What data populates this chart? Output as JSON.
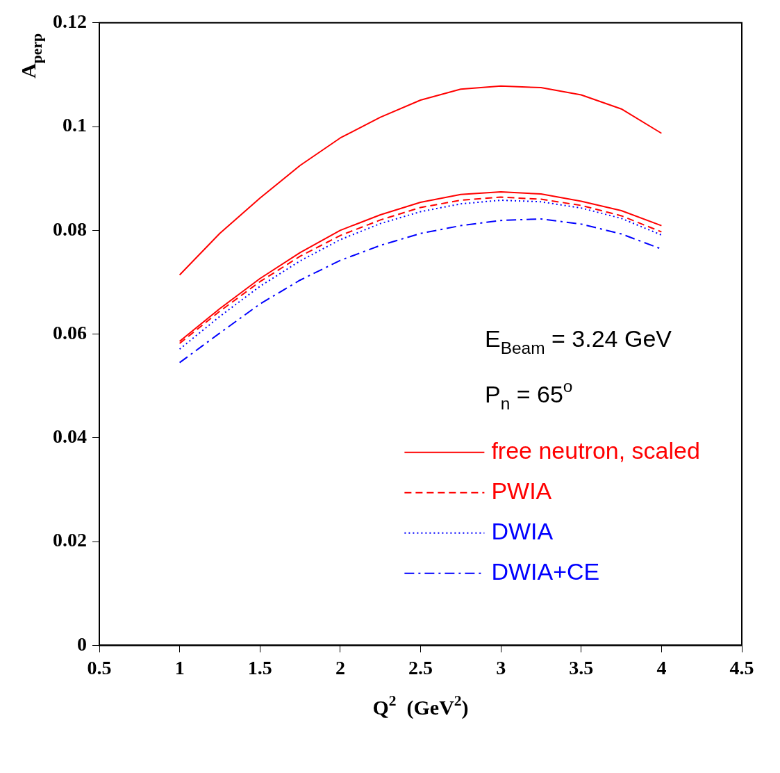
{
  "chart_data": {
    "type": "line",
    "xlabel": "Q$^{2}$  (GeV$^{2}$)",
    "ylabel": "A$_{perp}$",
    "annotations": [
      "E$_{Beam}$ = 3.24 GeV",
      "P$_{n}$ = 65$^{o}$"
    ],
    "x": [
      1,
      1.25,
      1.5,
      1.75,
      2,
      2.25,
      2.5,
      2.75,
      3,
      3.25,
      3.5,
      3.75,
      4
    ],
    "xlim": [
      0.5,
      4.5
    ],
    "xticks": [
      0.5,
      1,
      1.5,
      2,
      2.5,
      3,
      3.5,
      4,
      4.5
    ],
    "ylim": [
      0,
      0.12
    ],
    "yticks": [
      0,
      0.02,
      0.04,
      0.06,
      0.08,
      0.1,
      0.12
    ],
    "grid": false,
    "legend": "bottom right",
    "series": [
      {
        "name": "free neutron, scaled",
        "color": "#ff0000",
        "line_style": "solid",
        "values": [
          0.0714,
          0.0794,
          0.0862,
          0.0925,
          0.0978,
          0.1018,
          0.1051,
          0.1072,
          0.1078,
          0.1075,
          0.1061,
          0.1034,
          0.0987
        ]
      },
      {
        "color": "#ff0000",
        "line_style": "solid",
        "values": [
          0.0586,
          0.0649,
          0.0707,
          0.0757,
          0.08,
          0.083,
          0.0854,
          0.0869,
          0.0874,
          0.087,
          0.0856,
          0.0838,
          0.0809
        ]
      },
      {
        "name": "PWIA",
        "color": "#ff0000",
        "line_style": "dashed",
        "values": [
          0.0582,
          0.0644,
          0.0701,
          0.075,
          0.079,
          0.082,
          0.0844,
          0.0858,
          0.0864,
          0.086,
          0.0848,
          0.0828,
          0.0797
        ]
      },
      {
        "name": "DWIA",
        "color": "#0000ff",
        "line_style": "dotted",
        "values": [
          0.0571,
          0.0634,
          0.0692,
          0.0741,
          0.0782,
          0.0813,
          0.0836,
          0.0851,
          0.0858,
          0.0855,
          0.0843,
          0.0823,
          0.0791
        ]
      },
      {
        "name": "DWIA+CE",
        "color": "#0000ff",
        "line_style": "dashdot",
        "values": [
          0.0545,
          0.0602,
          0.0658,
          0.0704,
          0.0742,
          0.0771,
          0.0794,
          0.0809,
          0.0819,
          0.0822,
          0.0812,
          0.0793,
          0.0764
        ]
      }
    ]
  }
}
